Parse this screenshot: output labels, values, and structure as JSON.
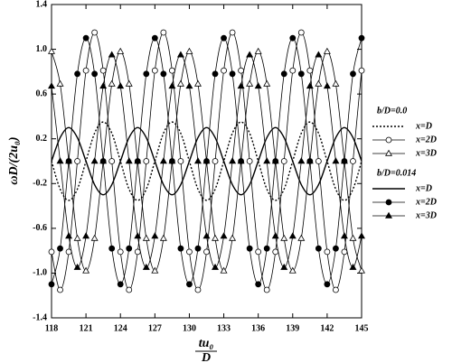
{
  "chart_data": {
    "type": "line",
    "y_label": "ωD/(2u₀)",
    "x_label_numerator": "tu₀",
    "x_label_denominator": "D",
    "legend_titles": [
      "b/D=0.0",
      "b/D=0.014"
    ],
    "legend": "right",
    "x": [
      118,
      118.75,
      119.5,
      120.25,
      121,
      121.75,
      122.5,
      123.25,
      124,
      124.75,
      125.5,
      126.25,
      127,
      127.75,
      128.5,
      129.25,
      130,
      130.75,
      131.5,
      132.25,
      133,
      133.75,
      134.5,
      135.25,
      136,
      136.75,
      137.5,
      138.25,
      139,
      139.75,
      140.5,
      141.25,
      142,
      142.75,
      143.5,
      144.25,
      145
    ],
    "series": [
      {
        "name": "x=D",
        "group": 0,
        "color": "#000000",
        "line": "dotted",
        "marker": "none",
        "values": [
          0,
          -0.25,
          -0.35,
          -0.25,
          0,
          0.25,
          0.35,
          0.25,
          0,
          -0.25,
          -0.35,
          -0.25,
          0,
          0.25,
          0.35,
          0.25,
          0,
          -0.25,
          -0.35,
          -0.25,
          0,
          0.25,
          0.35,
          0.25,
          0,
          -0.25,
          -0.35,
          -0.25,
          0,
          0.25,
          0.35,
          0.25,
          0,
          -0.25,
          -0.35,
          -0.25,
          0
        ]
      },
      {
        "name": "x=2D",
        "group": 0,
        "color": "#000000",
        "line": "solid",
        "marker": "open-circle",
        "values": [
          -0.81,
          -1.15,
          -0.81,
          0,
          0.81,
          1.15,
          0.81,
          0,
          -0.81,
          -1.15,
          -0.81,
          0,
          0.81,
          1.15,
          0.81,
          0,
          -0.81,
          -1.15,
          -0.81,
          0,
          0.81,
          1.15,
          0.81,
          0,
          -0.81,
          -1.15,
          -0.81,
          0,
          0.81,
          1.15,
          0.81,
          0,
          -0.81,
          -1.15,
          -0.81,
          0,
          0.81
        ]
      },
      {
        "name": "x=3D",
        "group": 0,
        "color": "#000000",
        "line": "solid",
        "marker": "open-triangle",
        "values": [
          0.98,
          0.69,
          0,
          -0.69,
          -0.98,
          -0.69,
          0,
          0.69,
          0.98,
          0.69,
          0,
          -0.69,
          -0.98,
          -0.69,
          0,
          0.69,
          0.98,
          0.69,
          0,
          -0.69,
          -0.98,
          -0.69,
          0,
          0.69,
          0.98,
          0.69,
          0,
          -0.69,
          -0.98,
          -0.69,
          0,
          0.69,
          0.98,
          0.69,
          0,
          -0.69,
          -0.98
        ]
      },
      {
        "name": "x=D",
        "group": 1,
        "color": "#000000",
        "line": "solid",
        "marker": "none",
        "values": [
          0,
          0.21,
          0.3,
          0.21,
          0,
          -0.21,
          -0.3,
          -0.21,
          0,
          0.21,
          0.3,
          0.21,
          0,
          -0.21,
          -0.3,
          -0.21,
          0,
          0.21,
          0.3,
          0.21,
          0,
          -0.21,
          -0.3,
          -0.21,
          0,
          0.21,
          0.3,
          0.21,
          0,
          -0.21,
          -0.3,
          -0.21,
          0,
          0.21,
          0.3,
          0.21,
          0
        ]
      },
      {
        "name": "x=2D",
        "group": 1,
        "color": "#000000",
        "line": "solid",
        "marker": "filled-circle",
        "values": [
          -1.1,
          -0.78,
          0,
          0.78,
          1.1,
          0.78,
          0,
          -0.78,
          -1.1,
          -0.78,
          0,
          0.78,
          1.1,
          0.78,
          0,
          -0.78,
          -1.1,
          -0.78,
          0,
          0.78,
          1.1,
          0.78,
          0,
          -0.78,
          -1.1,
          -0.78,
          0,
          0.78,
          1.1,
          0.78,
          0,
          -0.78,
          -1.1,
          -0.78,
          0,
          0.78,
          1.1
        ]
      },
      {
        "name": "x=3D",
        "group": 1,
        "color": "#000000",
        "line": "solid",
        "marker": "filled-triangle",
        "values": [
          0.67,
          0,
          -0.67,
          -0.95,
          -0.67,
          0,
          0.67,
          0.95,
          0.67,
          0,
          -0.67,
          -0.95,
          -0.67,
          0,
          0.67,
          0.95,
          0.67,
          0,
          -0.67,
          -0.95,
          -0.67,
          0,
          0.67,
          0.95,
          0.67,
          0,
          -0.67,
          -0.95,
          -0.67,
          0,
          0.67,
          0.95,
          0.67,
          0,
          -0.67,
          -0.95,
          -0.67
        ]
      }
    ],
    "xlim": [
      118,
      145
    ],
    "xticks": [
      118,
      121,
      124,
      127,
      130,
      133,
      136,
      139,
      142,
      145
    ],
    "ylim": [
      -1.4,
      1.4
    ],
    "yticks": [
      -1.4,
      {
        "value": -1,
        "label": "-1.0"
      },
      -0.6,
      -0.2,
      0.2,
      0.6,
      {
        "value": 1,
        "label": "1.0"
      },
      1.4
    ]
  }
}
